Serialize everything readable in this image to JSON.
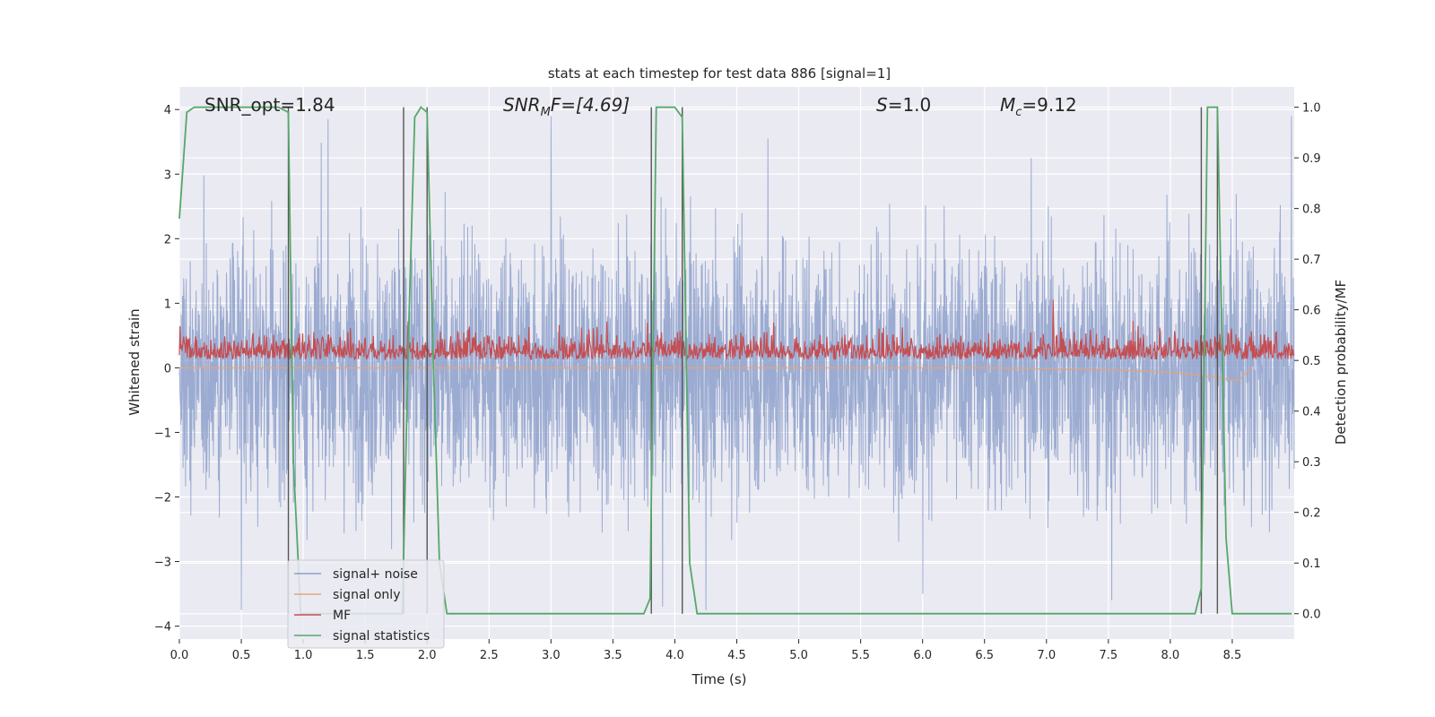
{
  "chart_data": {
    "type": "line",
    "title": "stats at each timestep for test data 886 [signal=1]",
    "xlabel": "Time (s)",
    "ylabel_left": "Whitened strain",
    "ylabel_right": "Detection probability/MF",
    "xlim": [
      0,
      9.0
    ],
    "ylim_left": [
      -4.2,
      4.35
    ],
    "ylim_right": [
      -0.05,
      1.04
    ],
    "x_ticks": [
      "0.0",
      "0.5",
      "1.0",
      "1.5",
      "2.0",
      "2.5",
      "3.0",
      "3.5",
      "4.0",
      "4.5",
      "5.0",
      "5.5",
      "6.0",
      "6.5",
      "7.0",
      "7.5",
      "8.0",
      "8.5"
    ],
    "y_ticks_left": [
      "4",
      "3",
      "2",
      "1",
      "0",
      "−1",
      "−2",
      "−3",
      "−4"
    ],
    "y_ticks_right": [
      "1.0",
      "0.9",
      "0.8",
      "0.7",
      "0.6",
      "0.5",
      "0.4",
      "0.3",
      "0.2",
      "0.1",
      "0.0"
    ],
    "grid": true,
    "legend_position": "bottom-left",
    "annotations": {
      "snr_opt": "SNR_opt=1.84",
      "snr_mf_prefix": "SNR",
      "snr_mf_sub": "M",
      "snr_mf_suffix": "F=[4.69]",
      "s_var": "S",
      "s_value": "=1.0",
      "mc_var": "M",
      "mc_sub": "c",
      "mc_value": "=9.12"
    },
    "series": [
      {
        "name": "signal+ noise",
        "color": "#8da0cb",
        "description_values": "white noise, std approx 1.0 whitened strain",
        "noise_std": 1.0,
        "peak_max": 3.9,
        "peak_min": -3.8
      },
      {
        "name": "signal only",
        "color": "#e4a47c",
        "x": [
          0.0,
          6.5,
          7.5,
          8.0,
          8.3,
          8.55,
          8.65
        ],
        "y": [
          0.0,
          0.0,
          -0.03,
          -0.07,
          -0.13,
          -0.2,
          0.0
        ]
      },
      {
        "name": "MF",
        "color": "#c44e52",
        "axis": "right",
        "baseline": 0.51,
        "noise_amp": 0.04,
        "peak": 0.62
      },
      {
        "name": "signal statistics",
        "color": "#55a868",
        "axis": "right",
        "x": [
          0.0,
          0.06,
          0.12,
          0.5,
          0.8,
          0.88,
          0.92,
          0.98,
          1.8,
          1.85,
          1.9,
          1.95,
          2.0,
          2.05,
          2.1,
          2.16,
          3.75,
          3.8,
          3.85,
          4.0,
          4.06,
          4.12,
          4.18,
          8.2,
          8.25,
          8.3,
          8.38,
          8.45,
          8.5,
          8.98
        ],
        "y": [
          0.78,
          0.99,
          1.0,
          1.0,
          1.0,
          0.99,
          0.3,
          0.0,
          0.0,
          0.55,
          0.98,
          1.0,
          0.99,
          0.5,
          0.1,
          0.0,
          0.0,
          0.03,
          1.0,
          1.0,
          0.98,
          0.1,
          0.0,
          0.0,
          0.05,
          1.0,
          1.0,
          0.15,
          0.0,
          0.0
        ]
      }
    ],
    "vertical_markers_x": [
      0.88,
      1.81,
      2.0,
      3.81,
      4.06,
      8.25,
      8.38
    ]
  }
}
